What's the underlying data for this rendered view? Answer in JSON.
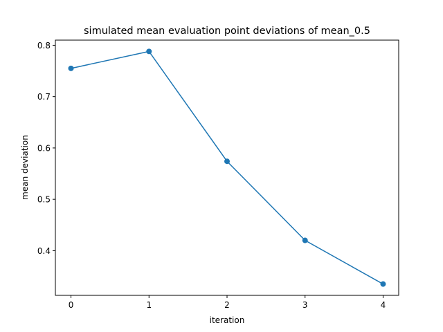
{
  "chart_data": {
    "type": "line",
    "title": "simulated mean evaluation point deviations of mean_0.5",
    "xlabel": "iteration",
    "ylabel": "mean deviation",
    "x": [
      0,
      1,
      2,
      3,
      4
    ],
    "series": [
      {
        "values": [
          0.755,
          0.788,
          0.574,
          0.42,
          0.335
        ],
        "color": "#1f77b4",
        "marker": "circle"
      }
    ],
    "xlim": [
      -0.2,
      4.2
    ],
    "ylim": [
      0.313,
      0.81
    ],
    "xticks": [
      0,
      1,
      2,
      3,
      4
    ],
    "xtick_labels": [
      "0",
      "1",
      "2",
      "3",
      "4"
    ],
    "yticks": [
      0.4,
      0.5,
      0.6,
      0.7,
      0.8
    ],
    "ytick_labels": [
      "0.4",
      "0.5",
      "0.6",
      "0.7",
      "0.8"
    ],
    "grid": false,
    "legend": false
  }
}
